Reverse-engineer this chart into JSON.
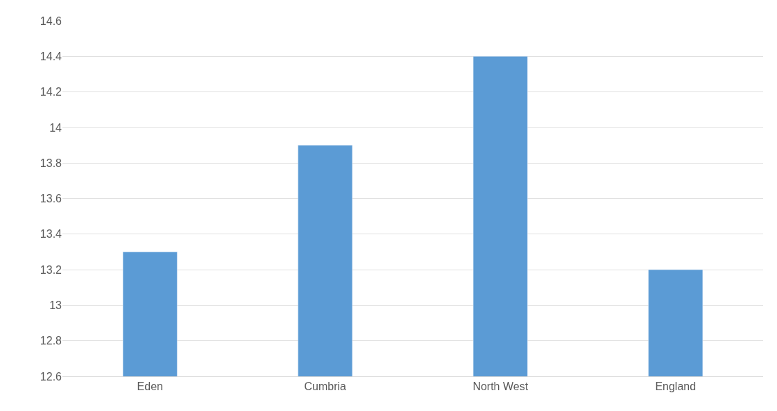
{
  "chart_data": {
    "type": "bar",
    "categories": [
      "Eden",
      "Cumbria",
      "North West",
      "England"
    ],
    "values": [
      13.3,
      13.9,
      14.4,
      13.2
    ],
    "color": "#5b9bd5",
    "ylim": [
      12.6,
      14.6
    ],
    "yticks": [
      12.6,
      12.8,
      13,
      13.2,
      13.4,
      13.6,
      13.8,
      14,
      14.2,
      14.4,
      14.6
    ],
    "grid": "y",
    "legend": false
  }
}
